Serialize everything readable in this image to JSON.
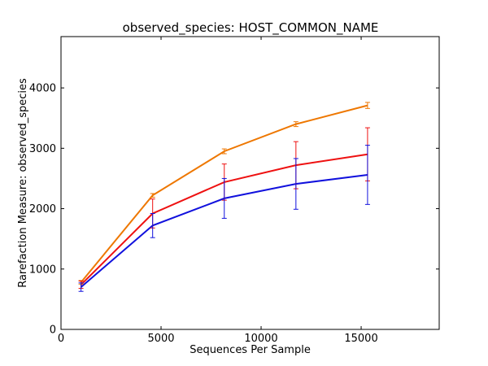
{
  "chart_data": {
    "type": "line",
    "title": "observed_species: HOST_COMMON_NAME",
    "xlabel": "Sequences Per Sample",
    "ylabel": "Rarefaction Measure: observed_species",
    "xlim": [
      0,
      18900
    ],
    "ylim": [
      0,
      4850
    ],
    "xticks": [
      0,
      5000,
      10000,
      15000
    ],
    "yticks": [
      0,
      1000,
      2000,
      3000,
      4000
    ],
    "grid": false,
    "legend": "none",
    "x": [
      1000,
      4580,
      8160,
      11740,
      15320
    ],
    "series": [
      {
        "color": "#ee7700",
        "values": [
          780,
          2220,
          2950,
          3400,
          3710
        ],
        "errors": [
          30,
          30,
          40,
          40,
          50
        ]
      },
      {
        "color": "#ee1111",
        "values": [
          740,
          1920,
          2440,
          2720,
          2900
        ],
        "errors": [
          60,
          240,
          300,
          390,
          440
        ]
      },
      {
        "color": "#1111dd",
        "values": [
          700,
          1720,
          2170,
          2410,
          2560
        ],
        "errors": [
          70,
          200,
          330,
          420,
          490
        ]
      }
    ]
  }
}
